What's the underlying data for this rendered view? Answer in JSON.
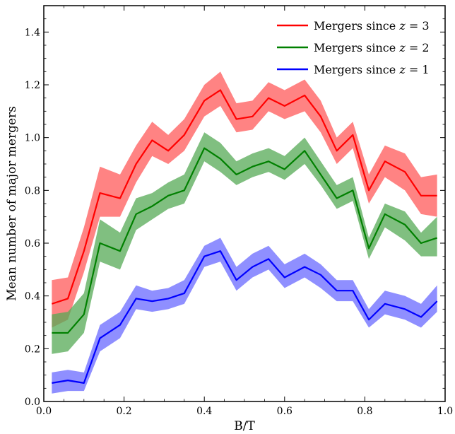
{
  "chart_data": {
    "type": "line",
    "title": "",
    "xlabel": "B/T",
    "ylabel": "Mean number of major mergers",
    "xlim": [
      0.0,
      1.0
    ],
    "ylim": [
      0.0,
      1.5
    ],
    "xticks": [
      0.0,
      0.2,
      0.4,
      0.6,
      0.8,
      1.0
    ],
    "xtick_labels": [
      "0.0",
      "0.2",
      "0.4",
      "0.6",
      "0.8",
      "1.0"
    ],
    "yticks": [
      0.0,
      0.2,
      0.4,
      0.6,
      0.8,
      1.0,
      1.2,
      1.4
    ],
    "ytick_labels": [
      "0.0",
      "0.2",
      "0.4",
      "0.6",
      "0.8",
      "1.0",
      "1.2",
      "1.4"
    ],
    "grid": false,
    "legend_position": "top-right",
    "x": [
      0.02,
      0.06,
      0.1,
      0.14,
      0.19,
      0.23,
      0.27,
      0.31,
      0.35,
      0.4,
      0.44,
      0.48,
      0.52,
      0.56,
      0.6,
      0.65,
      0.69,
      0.73,
      0.77,
      0.81,
      0.85,
      0.9,
      0.94,
      0.98
    ],
    "series": [
      {
        "name": "Mergers since z = 3",
        "legend_label": {
          "text": "Mergers since ",
          "var": "z",
          "suffix": " = 3"
        },
        "color": "#ff0000",
        "band_color": "#ff5a5a",
        "values": [
          0.37,
          0.39,
          0.57,
          0.79,
          0.77,
          0.9,
          0.99,
          0.95,
          1.01,
          1.14,
          1.18,
          1.07,
          1.08,
          1.15,
          1.12,
          1.16,
          1.08,
          0.95,
          1.01,
          0.8,
          0.91,
          0.87,
          0.78,
          0.78
        ],
        "lower": [
          0.28,
          0.31,
          0.49,
          0.7,
          0.7,
          0.83,
          0.93,
          0.9,
          0.95,
          1.08,
          1.12,
          1.02,
          1.03,
          1.1,
          1.07,
          1.1,
          1.02,
          0.9,
          0.96,
          0.75,
          0.85,
          0.8,
          0.71,
          0.7
        ],
        "upper": [
          0.46,
          0.47,
          0.66,
          0.89,
          0.86,
          0.97,
          1.06,
          1.01,
          1.07,
          1.2,
          1.25,
          1.13,
          1.14,
          1.21,
          1.18,
          1.22,
          1.14,
          1.0,
          1.06,
          0.86,
          0.97,
          0.94,
          0.85,
          0.86
        ]
      },
      {
        "name": "Mergers since z = 2",
        "legend_label": {
          "text": "Mergers since ",
          "var": "z",
          "suffix": " = 2"
        },
        "color": "#008000",
        "band_color": "#55aa55",
        "values": [
          0.26,
          0.26,
          0.33,
          0.6,
          0.57,
          0.71,
          0.74,
          0.78,
          0.8,
          0.96,
          0.92,
          0.86,
          0.89,
          0.91,
          0.88,
          0.95,
          0.86,
          0.77,
          0.8,
          0.58,
          0.71,
          0.67,
          0.6,
          0.62
        ],
        "lower": [
          0.18,
          0.19,
          0.26,
          0.53,
          0.5,
          0.65,
          0.69,
          0.73,
          0.75,
          0.91,
          0.87,
          0.82,
          0.85,
          0.87,
          0.84,
          0.9,
          0.82,
          0.73,
          0.76,
          0.54,
          0.66,
          0.61,
          0.55,
          0.55
        ],
        "upper": [
          0.33,
          0.34,
          0.41,
          0.69,
          0.64,
          0.77,
          0.79,
          0.83,
          0.86,
          1.02,
          0.98,
          0.91,
          0.94,
          0.96,
          0.93,
          1.0,
          0.91,
          0.82,
          0.85,
          0.62,
          0.75,
          0.72,
          0.64,
          0.7
        ]
      },
      {
        "name": "Mergers since z = 1",
        "legend_label": {
          "text": "Mergers since ",
          "var": "z",
          "suffix": " = 1"
        },
        "color": "#0000ff",
        "band_color": "#6a6aff",
        "values": [
          0.07,
          0.08,
          0.07,
          0.24,
          0.29,
          0.39,
          0.38,
          0.39,
          0.41,
          0.55,
          0.57,
          0.46,
          0.51,
          0.54,
          0.47,
          0.51,
          0.48,
          0.42,
          0.42,
          0.31,
          0.37,
          0.35,
          0.32,
          0.38
        ],
        "lower": [
          0.03,
          0.04,
          0.04,
          0.19,
          0.24,
          0.35,
          0.34,
          0.35,
          0.37,
          0.51,
          0.53,
          0.42,
          0.47,
          0.5,
          0.43,
          0.47,
          0.43,
          0.38,
          0.38,
          0.28,
          0.33,
          0.31,
          0.28,
          0.34
        ],
        "upper": [
          0.11,
          0.12,
          0.11,
          0.29,
          0.34,
          0.44,
          0.42,
          0.43,
          0.46,
          0.59,
          0.62,
          0.51,
          0.56,
          0.59,
          0.52,
          0.56,
          0.52,
          0.46,
          0.46,
          0.35,
          0.42,
          0.4,
          0.37,
          0.44
        ]
      }
    ]
  }
}
